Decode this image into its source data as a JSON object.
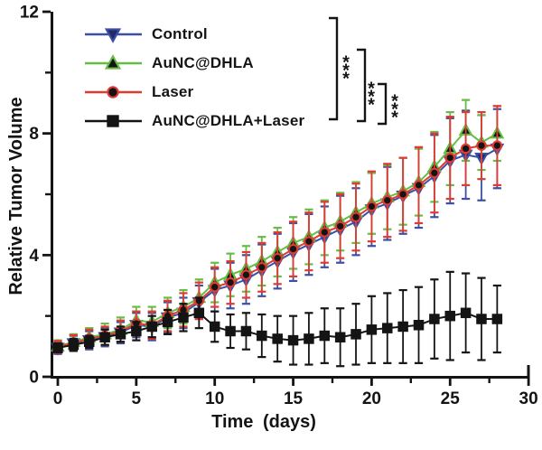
{
  "chart_data": {
    "type": "line",
    "title": "",
    "xlabel": "Time (days)",
    "ylabel": "Relative Tumor Volume",
    "xlim": [
      0,
      30
    ],
    "ylim": [
      0,
      12
    ],
    "xticks": [
      0,
      5,
      10,
      15,
      20,
      25,
      30
    ],
    "x_minor_ticks": [
      2.5,
      7.5,
      12.5,
      17.5,
      22.5,
      27.5
    ],
    "yticks": [
      0,
      4,
      8,
      12
    ],
    "y_minor_ticks": [
      2,
      6,
      10
    ],
    "grid": false,
    "legend_position": "top-left",
    "background": "#ffffff",
    "axis_color": "#141414",
    "x": [
      0,
      1,
      2,
      3,
      4,
      5,
      6,
      7,
      8,
      9,
      10,
      11,
      12,
      13,
      14,
      15,
      16,
      17,
      18,
      19,
      20,
      21,
      22,
      23,
      24,
      25,
      26,
      27,
      28
    ],
    "series": [
      {
        "name": "Control",
        "color": "#3c4fa4",
        "marker": "triangle-down",
        "marker_fill": "#1f2a6b",
        "values": [
          0.95,
          1.1,
          1.2,
          1.3,
          1.45,
          1.7,
          1.65,
          1.95,
          2.1,
          2.45,
          2.85,
          3.0,
          3.2,
          3.5,
          3.8,
          4.1,
          4.35,
          4.6,
          4.85,
          5.1,
          5.5,
          5.7,
          5.95,
          6.2,
          6.6,
          7.1,
          7.3,
          7.2,
          7.5
        ],
        "errors": [
          0.2,
          0.25,
          0.3,
          0.3,
          0.35,
          0.4,
          0.45,
          0.5,
          0.5,
          0.55,
          0.7,
          0.75,
          0.8,
          0.85,
          0.9,
          0.95,
          1.0,
          1.0,
          1.1,
          1.1,
          1.2,
          1.2,
          1.25,
          1.3,
          1.35,
          1.4,
          1.45,
          1.4,
          1.3
        ]
      },
      {
        "name": "AuNC@DHLA",
        "color": "#66bd45",
        "marker": "triangle-up",
        "marker_fill": "#141414",
        "values": [
          1.0,
          1.15,
          1.3,
          1.4,
          1.55,
          1.85,
          1.8,
          2.1,
          2.3,
          2.6,
          3.1,
          3.35,
          3.55,
          3.8,
          4.1,
          4.4,
          4.6,
          4.9,
          5.1,
          5.4,
          5.7,
          5.9,
          6.1,
          6.4,
          6.9,
          7.5,
          8.1,
          7.7,
          8.0
        ],
        "errors": [
          0.2,
          0.25,
          0.3,
          0.35,
          0.4,
          0.45,
          0.5,
          0.5,
          0.55,
          0.6,
          0.65,
          0.7,
          0.75,
          0.8,
          0.8,
          0.85,
          0.9,
          0.9,
          0.95,
          1.0,
          1.0,
          1.05,
          1.1,
          1.1,
          1.15,
          1.2,
          1.0,
          0.9,
          0.9
        ]
      },
      {
        "name": "Laser",
        "color": "#de3b33",
        "marker": "circle",
        "marker_fill": "#141414",
        "values": [
          0.98,
          1.12,
          1.25,
          1.35,
          1.5,
          1.75,
          1.7,
          2.0,
          2.2,
          2.5,
          2.95,
          3.1,
          3.35,
          3.6,
          3.9,
          4.2,
          4.45,
          4.75,
          4.95,
          5.25,
          5.6,
          5.8,
          6.0,
          6.3,
          6.7,
          7.2,
          7.5,
          7.6,
          7.6
        ],
        "errors": [
          0.2,
          0.25,
          0.3,
          0.3,
          0.35,
          0.4,
          0.45,
          0.5,
          0.55,
          0.6,
          0.65,
          0.7,
          0.75,
          0.8,
          0.85,
          0.9,
          0.95,
          1.0,
          1.05,
          1.1,
          1.15,
          1.2,
          1.2,
          1.25,
          1.3,
          1.35,
          1.2,
          1.1,
          1.3
        ]
      },
      {
        "name": "AuNC@DHLA+Laser",
        "color": "#141414",
        "marker": "square",
        "marker_fill": "#141414",
        "values": [
          0.95,
          1.05,
          1.15,
          1.3,
          1.4,
          1.5,
          1.65,
          1.8,
          1.95,
          2.1,
          1.65,
          1.5,
          1.5,
          1.35,
          1.25,
          1.2,
          1.25,
          1.35,
          1.3,
          1.4,
          1.55,
          1.6,
          1.65,
          1.7,
          1.9,
          2.0,
          2.1,
          1.9,
          1.9
        ],
        "errors": [
          0.15,
          0.2,
          0.2,
          0.25,
          0.25,
          0.3,
          0.35,
          0.4,
          0.45,
          0.5,
          0.5,
          0.55,
          0.6,
          0.7,
          0.75,
          0.8,
          0.85,
          0.9,
          0.95,
          1.0,
          1.1,
          1.15,
          1.2,
          1.25,
          1.3,
          1.45,
          1.3,
          1.35,
          1.1
        ]
      }
    ],
    "annotations": [
      {
        "label": "***",
        "compare": [
          "Control",
          "AuNC@DHLA+Laser"
        ]
      },
      {
        "label": "***",
        "compare": [
          "AuNC@DHLA",
          "AuNC@DHLA+Laser"
        ]
      },
      {
        "label": "***",
        "compare": [
          "Laser",
          "AuNC@DHLA+Laser"
        ]
      }
    ]
  }
}
